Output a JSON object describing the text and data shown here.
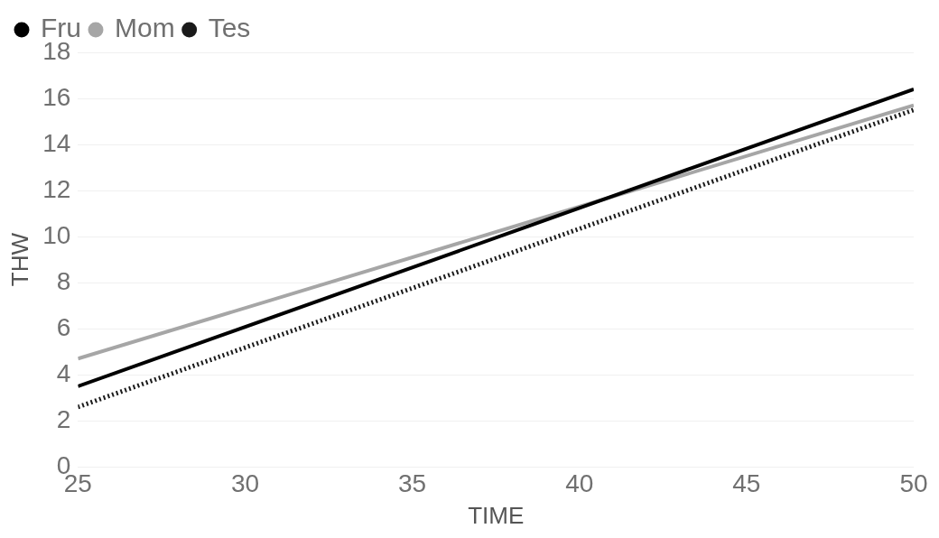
{
  "chart_data": {
    "type": "line",
    "xlabel": "TIME",
    "ylabel": "THW",
    "x": [
      25,
      50
    ],
    "xlim": [
      25,
      50
    ],
    "xticks": [
      25,
      30,
      35,
      40,
      45,
      50
    ],
    "ylim": [
      0,
      18
    ],
    "yticks": [
      0,
      2,
      4,
      6,
      8,
      10,
      12,
      14,
      16,
      18
    ],
    "grid": "y",
    "legend": "top left",
    "marker": "none",
    "series": [
      {
        "name": "Fru",
        "color": "#000000",
        "values": [
          3.5,
          16.4
        ],
        "line_style": "solid"
      },
      {
        "name": "Mom",
        "color": "#a6a6a6",
        "values": [
          4.7,
          15.7
        ],
        "line_style": "solid"
      },
      {
        "name": "Tes",
        "color": "#1a1a1a",
        "values": [
          2.6,
          15.5
        ],
        "line_style": "dotted"
      }
    ]
  }
}
